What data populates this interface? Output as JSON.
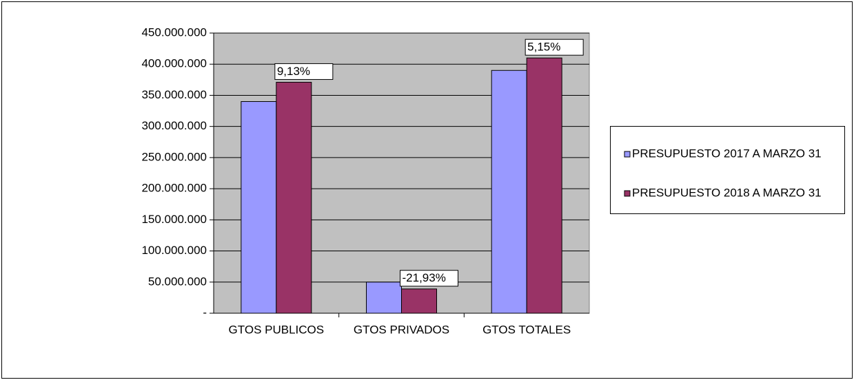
{
  "chart_data": {
    "type": "bar",
    "categories": [
      "GTOS PUBLICOS",
      "GTOS PRIVADOS",
      "GTOS TOTALES"
    ],
    "series": [
      {
        "name": "PRESUPUESTO 2017 A MARZO 31",
        "color": "#9999ff",
        "values": [
          340000000,
          50000000,
          390000000
        ]
      },
      {
        "name": "PRESUPUESTO 2018 A MARZO 31",
        "color": "#993366",
        "values": [
          371000000,
          39000000,
          410000000
        ]
      }
    ],
    "annotations": [
      "9,13%",
      "-21,93%",
      "5,15%"
    ],
    "ylim": [
      0,
      450000000
    ],
    "yticks": [
      {
        "value": 0,
        "label": "-"
      },
      {
        "value": 50000000,
        "label": "50.000.000"
      },
      {
        "value": 100000000,
        "label": "100.000.000"
      },
      {
        "value": 150000000,
        "label": "150.000.000"
      },
      {
        "value": 200000000,
        "label": "200.000.000"
      },
      {
        "value": 250000000,
        "label": "250.000.000"
      },
      {
        "value": 300000000,
        "label": "300.000.000"
      },
      {
        "value": 350000000,
        "label": "350.000.000"
      },
      {
        "value": 400000000,
        "label": "400.000.000"
      },
      {
        "value": 450000000,
        "label": "450.000.000"
      }
    ],
    "grid": true,
    "legend": "right"
  }
}
